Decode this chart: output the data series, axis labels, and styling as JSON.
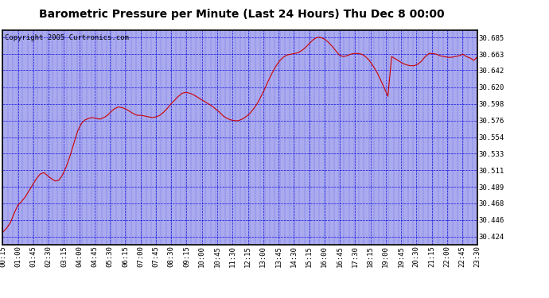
{
  "title": "Barometric Pressure per Minute (Last 24 Hours) Thu Dec 8 00:00",
  "copyright": "Copyright 2005 Curtronics.com",
  "line_color": "#cc0000",
  "outer_bg_color": "#ffffff",
  "plot_bg_color": "#aaaaee",
  "grid_color": "#0000dd",
  "yticks": [
    30.424,
    30.446,
    30.468,
    30.489,
    30.511,
    30.533,
    30.554,
    30.576,
    30.598,
    30.62,
    30.642,
    30.663,
    30.685
  ],
  "ylim": [
    30.414,
    30.695
  ],
  "xtick_labels": [
    "00:15",
    "01:00",
    "01:45",
    "02:30",
    "03:15",
    "04:00",
    "04:45",
    "05:30",
    "06:15",
    "07:00",
    "07:45",
    "08:30",
    "09:15",
    "10:00",
    "10:45",
    "11:30",
    "12:15",
    "13:00",
    "13:45",
    "14:30",
    "15:15",
    "16:00",
    "16:45",
    "17:30",
    "18:15",
    "19:00",
    "19:45",
    "20:30",
    "21:15",
    "22:00",
    "22:45",
    "23:30"
  ],
  "pressure_data": [
    30.43,
    30.433,
    30.436,
    30.44,
    30.445,
    30.45,
    30.458,
    30.465,
    30.47,
    30.476,
    30.481,
    30.485,
    30.489,
    30.493,
    30.497,
    30.5,
    30.503,
    30.506,
    30.509,
    30.511,
    30.51,
    30.508,
    30.505,
    30.502,
    30.499,
    30.497,
    30.495,
    30.494,
    30.493,
    30.494,
    30.496,
    30.5,
    30.507,
    30.515,
    30.523,
    30.532,
    30.541,
    30.55,
    30.559,
    30.567,
    30.573,
    30.577,
    30.58,
    30.581,
    30.58,
    30.578,
    30.577,
    30.577,
    30.578,
    30.579,
    30.58,
    30.582,
    30.584,
    30.586,
    30.588,
    30.59,
    30.591,
    30.592,
    30.592,
    30.591,
    30.59,
    30.588,
    30.586,
    30.584,
    30.583,
    30.582,
    30.582,
    30.583,
    30.584,
    30.586,
    30.588,
    30.591,
    30.594,
    30.597,
    30.6,
    30.603,
    30.606,
    30.608,
    30.609,
    30.608,
    30.607,
    30.605,
    30.602,
    30.599,
    30.596,
    30.593,
    30.59,
    30.588,
    30.586,
    30.584,
    30.583,
    30.582,
    30.581,
    30.58,
    30.58,
    30.58,
    30.581,
    30.582,
    30.584,
    30.587,
    30.591,
    30.596,
    30.601,
    30.608,
    30.615,
    30.622,
    30.629,
    30.635,
    30.641,
    30.646,
    30.65,
    30.654,
    30.657,
    30.659,
    30.661,
    30.662,
    30.663,
    30.663,
    30.664,
    30.664,
    30.664,
    30.665,
    30.666,
    30.667,
    30.669,
    30.671,
    30.674,
    30.677,
    30.68,
    30.682,
    30.684,
    30.685,
    30.685,
    30.685,
    30.684,
    30.682,
    30.68,
    30.678,
    30.675,
    30.672,
    30.669,
    30.666,
    30.663,
    30.661,
    30.66,
    30.66,
    30.66,
    30.661,
    30.662,
    30.663,
    30.664,
    30.664,
    30.664,
    30.663,
    30.662,
    30.66,
    30.658,
    30.655,
    30.652,
    30.649,
    30.645,
    30.641,
    30.637,
    30.633,
    30.628,
    30.623,
    30.617,
    30.611,
    30.606,
    30.663,
    30.66,
    30.657,
    30.654,
    30.651,
    30.648,
    30.645,
    30.642,
    30.64,
    30.638,
    30.637,
    30.637,
    30.638,
    30.64,
    30.643,
    30.648,
    30.654,
    30.66,
    30.663,
    30.664,
    30.664,
    30.663,
    30.66
  ],
  "title_fontsize": 10,
  "tick_fontsize": 6.5,
  "copyright_fontsize": 6.5
}
